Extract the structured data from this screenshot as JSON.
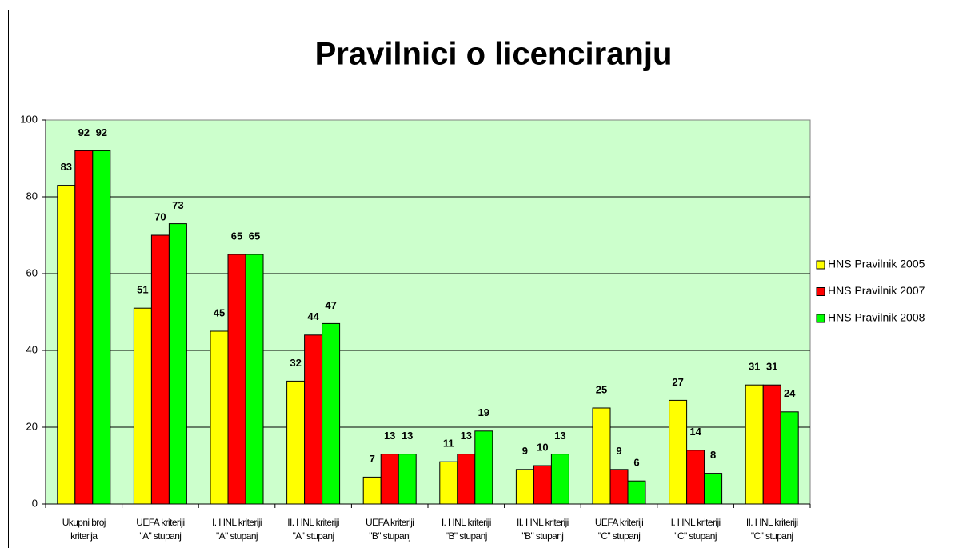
{
  "chart_data": {
    "type": "bar",
    "title": "Pravilnici o licenciranju",
    "categories": [
      "Ukupni broj\nkriterija",
      "UEFA kriteriji\n\"A\" stupanj",
      "I. HNL kriteriji\n\"A\" stupanj",
      "II. HNL kriteriji\n\"A\" stupanj",
      "UEFA kriteriji\n\"B\" stupanj",
      "I. HNL kriteriji\n\"B\" stupanj",
      "II. HNL kriteriji\n\"B\" stupanj",
      "UEFA kriteriji\n\"C\" stupanj",
      "I. HNL kriteriji\n\"C\" stupanj",
      "II. HNL kriteriji\n\"C\" stupanj"
    ],
    "series": [
      {
        "name": "HNS Pravilnik 2005",
        "color": "#ffff00",
        "values": [
          83,
          51,
          45,
          32,
          7,
          11,
          9,
          25,
          27,
          31
        ]
      },
      {
        "name": "HNS Pravilnik 2007",
        "color": "#ff0000",
        "values": [
          92,
          70,
          65,
          44,
          13,
          13,
          10,
          9,
          14,
          31
        ]
      },
      {
        "name": "HNS Pravilnik 2008",
        "color": "#00ff00",
        "values": [
          92,
          73,
          65,
          47,
          13,
          19,
          13,
          6,
          8,
          24
        ]
      }
    ],
    "ylim": [
      0,
      100
    ],
    "yticks": [
      0,
      20,
      40,
      60,
      80,
      100
    ],
    "grid": true,
    "plot_background": "#ccffcc",
    "legend": "right"
  }
}
